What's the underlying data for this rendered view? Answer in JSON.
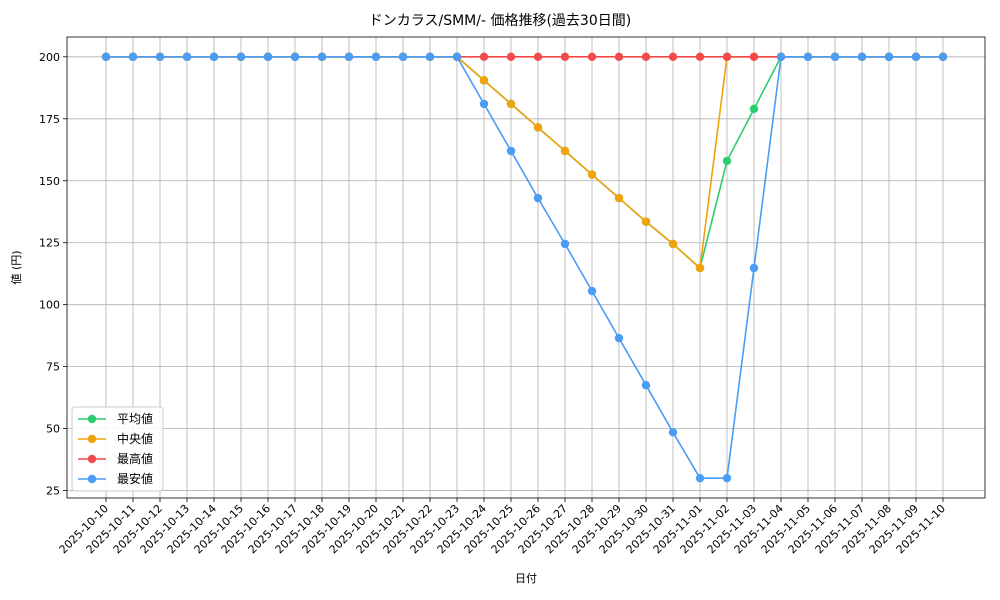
{
  "chart_data": {
    "type": "line",
    "title": "ドンカラス/SMM/- 価格推移(過去30日間)",
    "xlabel": "日付",
    "ylabel": "値 (円)",
    "ylim": [
      22,
      208
    ],
    "yticks": [
      25,
      50,
      75,
      100,
      125,
      150,
      175,
      200
    ],
    "grid": true,
    "legend_position": "lower-left",
    "x": [
      "2025-10-10",
      "2025-10-11",
      "2025-10-12",
      "2025-10-13",
      "2025-10-14",
      "2025-10-15",
      "2025-10-16",
      "2025-10-17",
      "2025-10-18",
      "2025-10-19",
      "2025-10-20",
      "2025-10-21",
      "2025-10-22",
      "2025-10-23",
      "2025-10-24",
      "2025-10-25",
      "2025-10-26",
      "2025-10-27",
      "2025-10-28",
      "2025-10-29",
      "2025-10-30",
      "2025-10-31",
      "2025-11-01",
      "2025-11-02",
      "2025-11-03",
      "2025-11-04",
      "2025-11-05",
      "2025-11-06",
      "2025-11-07",
      "2025-11-08",
      "2025-11-09",
      "2025-11-10"
    ],
    "series": [
      {
        "name": "平均値",
        "color": "#2ecc71",
        "values": [
          200,
          200,
          200,
          200,
          200,
          200,
          200,
          200,
          200,
          200,
          200,
          200,
          200,
          200,
          190.5,
          181,
          171.5,
          162,
          152.5,
          143,
          133.5,
          124.5,
          114.8,
          158,
          179,
          200,
          200,
          200,
          200,
          200,
          200,
          200
        ]
      },
      {
        "name": "中央値",
        "color": "#f0a30a",
        "values": [
          200,
          200,
          200,
          200,
          200,
          200,
          200,
          200,
          200,
          200,
          200,
          200,
          200,
          200,
          190.5,
          181,
          171.5,
          162,
          152.5,
          143,
          133.5,
          124.5,
          114.8,
          200,
          200,
          200,
          200,
          200,
          200,
          200,
          200,
          200
        ]
      },
      {
        "name": "最高値",
        "color": "#f04a4a",
        "values": [
          200,
          200,
          200,
          200,
          200,
          200,
          200,
          200,
          200,
          200,
          200,
          200,
          200,
          200,
          200,
          200,
          200,
          200,
          200,
          200,
          200,
          200,
          200,
          200,
          200,
          200,
          200,
          200,
          200,
          200,
          200,
          200
        ]
      },
      {
        "name": "最安値",
        "color": "#4a9cf5",
        "values": [
          200,
          200,
          200,
          200,
          200,
          200,
          200,
          200,
          200,
          200,
          200,
          200,
          200,
          200,
          181,
          162,
          143,
          124.5,
          105.5,
          86.5,
          67.5,
          48.5,
          30,
          30,
          114.8,
          200,
          200,
          200,
          200,
          200,
          200,
          200
        ]
      }
    ]
  }
}
